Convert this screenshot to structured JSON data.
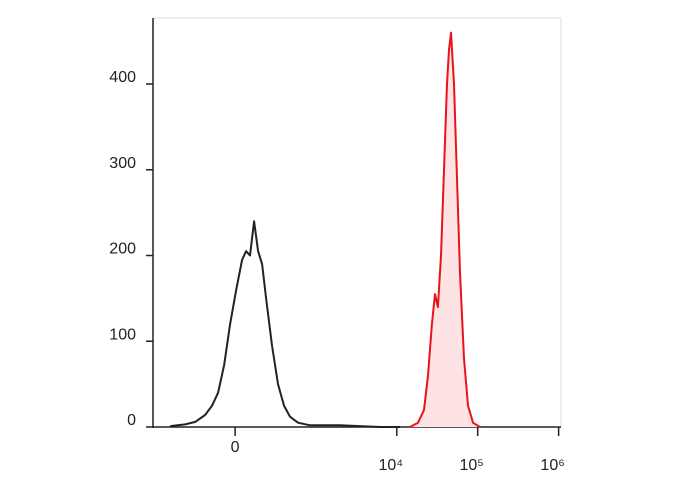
{
  "chart_data": {
    "type": "histogram-line",
    "xscale": "biexponential",
    "xlim": [
      -1030,
      1070000
    ],
    "xticks": [
      0,
      {
        "value": 10000,
        "label": "10⁴"
      },
      {
        "value": 100000,
        "label": "10⁵"
      },
      {
        "value": 1000000,
        "label": "10⁶"
      }
    ],
    "ylim": [
      0,
      477
    ],
    "yticks": [
      0,
      100,
      200,
      300,
      400
    ],
    "series": [
      {
        "color": "#222222",
        "x": [
          -621,
          -392,
          -281,
          -193,
          -141,
          -101,
          -64,
          -29,
          6,
          40,
          64,
          88,
          114,
          141,
          170,
          201,
          252,
          311,
          379,
          458,
          585,
          836,
          1984,
          6190,
          10950
        ],
        "values": [
          1,
          3,
          6,
          14,
          25,
          40,
          72,
          120,
          160,
          195,
          205,
          200,
          240,
          205,
          190,
          150,
          95,
          50,
          25,
          12,
          5,
          2,
          2,
          0,
          0
        ]
      },
      {
        "color": "#e8141b",
        "fill": "#fde3e3",
        "x": [
          14550,
          18270,
          21670,
          24280,
          27200,
          29630,
          32260,
          35150,
          38290,
          41710,
          44160,
          46750,
          50910,
          55460,
          60400,
          67700,
          75840,
          87400,
          106600
        ],
        "values": [
          0,
          5,
          20,
          60,
          120,
          155,
          140,
          200,
          300,
          400,
          440,
          460,
          400,
          290,
          180,
          80,
          25,
          5,
          0
        ]
      }
    ]
  }
}
